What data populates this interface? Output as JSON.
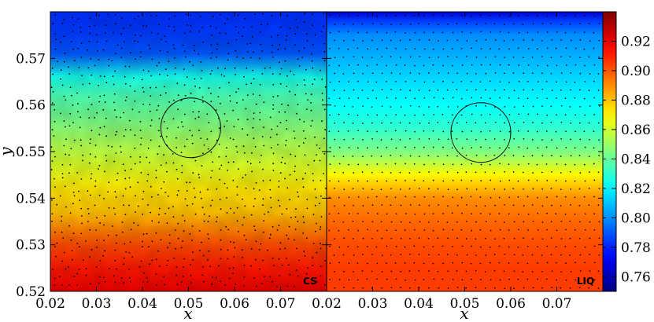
{
  "chart_data": [
    {
      "type": "heatmap",
      "panel_label": "CS",
      "xlabel": "x",
      "ylabel": "y",
      "xlim": [
        0.02,
        0.08
      ],
      "ylim": [
        0.52,
        0.58
      ],
      "x_ticks": [
        "0.02",
        "0.03",
        "0.04",
        "0.05",
        "0.06",
        "0.07"
      ],
      "y_ticks": [
        "0.52",
        "0.53",
        "0.54",
        "0.55",
        "0.56",
        "0.57"
      ],
      "x_tick_values": [
        0.02,
        0.03,
        0.04,
        0.05,
        0.06,
        0.07
      ],
      "y_tick_values": [
        0.52,
        0.53,
        0.54,
        0.55,
        0.56,
        0.57
      ],
      "profile_y": [
        0.52,
        0.525,
        0.53,
        0.533,
        0.537,
        0.542,
        0.547,
        0.552,
        0.557,
        0.562,
        0.566,
        0.571,
        0.575,
        0.58
      ],
      "profile_value": [
        0.92,
        0.912,
        0.902,
        0.893,
        0.88,
        0.873,
        0.862,
        0.853,
        0.843,
        0.835,
        0.825,
        0.79,
        0.785,
        0.782
      ],
      "circle": {
        "cx": 0.0505,
        "cy": 0.5551,
        "r": 0.0065
      },
      "particles": "scattered particle markers"
    },
    {
      "type": "heatmap",
      "panel_label": "LIQ",
      "xlabel": "x",
      "xlim": [
        0.02,
        0.08
      ],
      "ylim": [
        0.52,
        0.58
      ],
      "x_ticks": [
        "0.02",
        "0.03",
        "0.04",
        "0.05",
        "0.06",
        "0.07"
      ],
      "x_tick_values": [
        0.02,
        0.03,
        0.04,
        0.05,
        0.06,
        0.07
      ],
      "profile_y": [
        0.52,
        0.525,
        0.53,
        0.535,
        0.54,
        0.545,
        0.55,
        0.555,
        0.56,
        0.565,
        0.57,
        0.575,
        0.578,
        0.58
      ],
      "profile_value": [
        0.905,
        0.905,
        0.902,
        0.897,
        0.89,
        0.87,
        0.845,
        0.83,
        0.822,
        0.815,
        0.807,
        0.8,
        0.785,
        0.765
      ],
      "circle": {
        "cx": 0.0535,
        "cy": 0.5541,
        "r": 0.0065
      },
      "particles": "regular lattice particle markers"
    },
    {
      "type": "colorbar",
      "colormap": "jet",
      "range": [
        0.75,
        0.94
      ],
      "ticks": [
        "0.76",
        "0.78",
        "0.80",
        "0.82",
        "0.84",
        "0.86",
        "0.88",
        "0.90",
        "0.92"
      ],
      "tick_values": [
        0.76,
        0.78,
        0.8,
        0.82,
        0.84,
        0.86,
        0.88,
        0.9,
        0.92
      ]
    }
  ]
}
